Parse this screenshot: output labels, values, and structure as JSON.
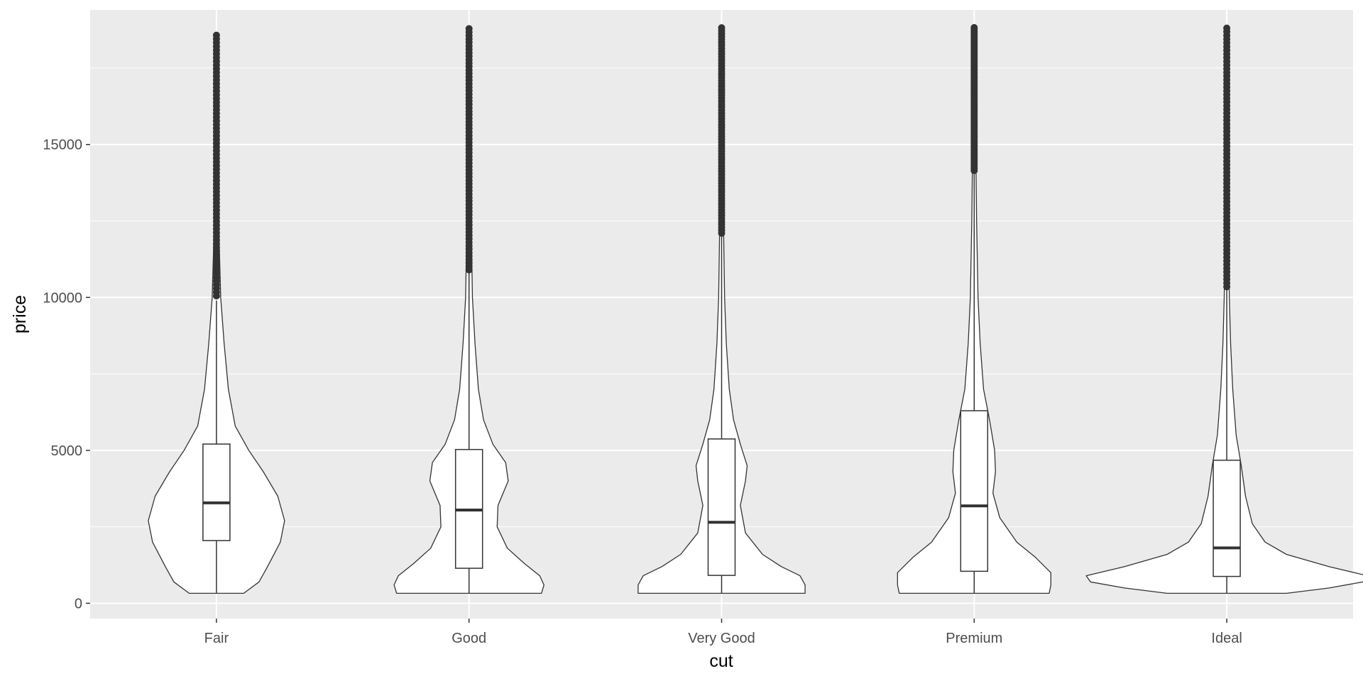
{
  "chart_data": {
    "type": "violin",
    "title": "",
    "xlabel": "cut",
    "ylabel": "price",
    "categories": [
      "Fair",
      "Good",
      "Very Good",
      "Premium",
      "Ideal"
    ],
    "ylim": [
      -500,
      19400
    ],
    "yticks": [
      0,
      5000,
      10000,
      15000
    ],
    "ytick_labels": [
      "0",
      "5000",
      "10000",
      "15000"
    ],
    "grid": true,
    "legend": "none",
    "colors": {
      "panel_background": "#ebebeb",
      "grid": "#ffffff",
      "violin_fill": "#ffffff",
      "outline": "#333333",
      "outlier": "#333333"
    },
    "box_stats": [
      {
        "category": "Fair",
        "min": 337,
        "q1": 2050,
        "median": 3282,
        "q3": 5206,
        "whisker_high": 9900,
        "outliers_from": 10050,
        "max": 18574
      },
      {
        "category": "Good",
        "min": 327,
        "q1": 1145,
        "median": 3050,
        "q3": 5028,
        "whisker_high": 10850,
        "outliers_from": 10900,
        "max": 18788
      },
      {
        "category": "Very Good",
        "min": 336,
        "q1": 912,
        "median": 2648,
        "q3": 5373,
        "whisker_high": 12050,
        "outliers_from": 12100,
        "max": 18818
      },
      {
        "category": "Premium",
        "min": 326,
        "q1": 1046,
        "median": 3185,
        "q3": 6296,
        "whisker_high": 14100,
        "outliers_from": 14150,
        "max": 18823
      },
      {
        "category": "Ideal",
        "min": 326,
        "q1": 878,
        "median": 1810,
        "q3": 4678,
        "whisker_high": 10300,
        "outliers_from": 10350,
        "max": 18806
      }
    ],
    "violin_halfwidth_profile": [
      {
        "category": "Fair",
        "profile": [
          [
            326,
            0.32
          ],
          [
            700,
            0.5
          ],
          [
            1200,
            0.6
          ],
          [
            2000,
            0.75
          ],
          [
            2700,
            0.8
          ],
          [
            3500,
            0.72
          ],
          [
            4300,
            0.55
          ],
          [
            5000,
            0.38
          ],
          [
            5800,
            0.22
          ],
          [
            7000,
            0.14
          ],
          [
            8500,
            0.09
          ],
          [
            10000,
            0.05
          ],
          [
            12000,
            0.03
          ],
          [
            14500,
            0.018
          ],
          [
            16500,
            0.012
          ],
          [
            18574,
            0.006
          ]
        ]
      },
      {
        "category": "Good",
        "profile": [
          [
            326,
            0.85
          ],
          [
            600,
            0.88
          ],
          [
            900,
            0.83
          ],
          [
            1300,
            0.65
          ],
          [
            1800,
            0.45
          ],
          [
            2500,
            0.33
          ],
          [
            3200,
            0.34
          ],
          [
            4000,
            0.46
          ],
          [
            4600,
            0.43
          ],
          [
            5200,
            0.28
          ],
          [
            6000,
            0.17
          ],
          [
            7000,
            0.11
          ],
          [
            8500,
            0.07
          ],
          [
            10000,
            0.04
          ],
          [
            12500,
            0.025
          ],
          [
            15000,
            0.016
          ],
          [
            17000,
            0.011
          ],
          [
            18788,
            0.006
          ]
        ]
      },
      {
        "category": "Very Good",
        "profile": [
          [
            326,
            0.98
          ],
          [
            600,
            0.98
          ],
          [
            900,
            0.92
          ],
          [
            1200,
            0.7
          ],
          [
            1600,
            0.48
          ],
          [
            2300,
            0.28
          ],
          [
            3200,
            0.22
          ],
          [
            4000,
            0.28
          ],
          [
            4500,
            0.3
          ],
          [
            5200,
            0.22
          ],
          [
            6000,
            0.14
          ],
          [
            7000,
            0.09
          ],
          [
            8500,
            0.055
          ],
          [
            10000,
            0.035
          ],
          [
            12500,
            0.022
          ],
          [
            15000,
            0.015
          ],
          [
            17000,
            0.01
          ],
          [
            18818,
            0.006
          ]
        ]
      },
      {
        "category": "Premium",
        "profile": [
          [
            326,
            0.88
          ],
          [
            600,
            0.9
          ],
          [
            1000,
            0.9
          ],
          [
            1500,
            0.72
          ],
          [
            2000,
            0.5
          ],
          [
            2800,
            0.3
          ],
          [
            3600,
            0.22
          ],
          [
            4300,
            0.25
          ],
          [
            5000,
            0.24
          ],
          [
            6000,
            0.18
          ],
          [
            7000,
            0.11
          ],
          [
            8500,
            0.07
          ],
          [
            10000,
            0.045
          ],
          [
            12500,
            0.028
          ],
          [
            14500,
            0.02
          ],
          [
            16500,
            0.013
          ],
          [
            18823,
            0.007
          ]
        ]
      },
      {
        "category": "Ideal",
        "profile": [
          [
            326,
            0.7
          ],
          [
            500,
            1.2
          ],
          [
            700,
            1.6
          ],
          [
            900,
            1.65
          ],
          [
            1200,
            1.2
          ],
          [
            1600,
            0.7
          ],
          [
            2000,
            0.45
          ],
          [
            2600,
            0.3
          ],
          [
            3500,
            0.22
          ],
          [
            4500,
            0.17
          ],
          [
            5500,
            0.11
          ],
          [
            7000,
            0.07
          ],
          [
            8500,
            0.045
          ],
          [
            10000,
            0.03
          ],
          [
            12500,
            0.018
          ],
          [
            15000,
            0.012
          ],
          [
            17000,
            0.009
          ],
          [
            18806,
            0.005
          ]
        ]
      }
    ]
  }
}
